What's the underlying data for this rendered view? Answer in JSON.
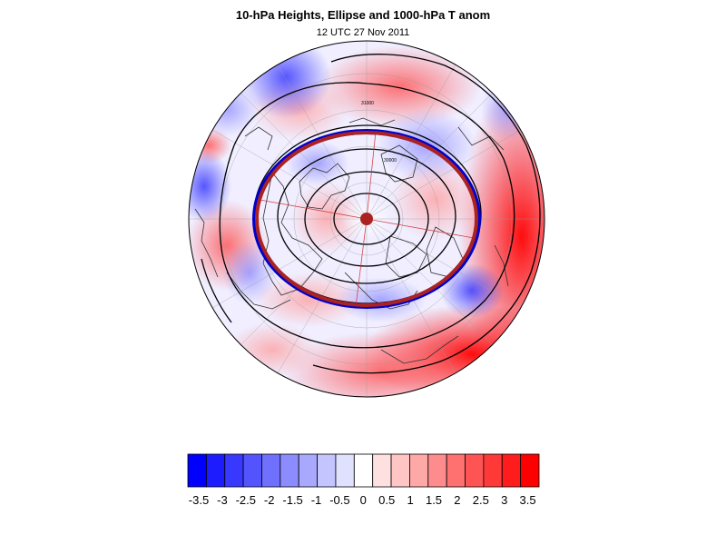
{
  "title": "10-hPa Heights, Ellipse and 1000-hPa T anom",
  "subtitle": "12 UTC 27 Nov 2011",
  "colors": {
    "cold": "#0000ff",
    "warm": "#ff0000",
    "ellipse": "#aa2222",
    "ellipse_edge": "#0000cc",
    "contour": "#000000",
    "coast": "#333333"
  },
  "colorbar": {
    "levels": [
      "-3.5",
      "-3",
      "-2.5",
      "-2",
      "-1.5",
      "-1",
      "-0.5",
      "0",
      "0.5",
      "1",
      "1.5",
      "2",
      "2.5",
      "3",
      "3.5"
    ],
    "colors": [
      "#0000ff",
      "#1c1cff",
      "#3838ff",
      "#5454ff",
      "#7070ff",
      "#8c8cff",
      "#a8a8ff",
      "#c4c4ff",
      "#e0e0ff",
      "#ffffff",
      "#ffe0e0",
      "#ffc4c4",
      "#ffa8a8",
      "#ff8c8c",
      "#ff7070",
      "#ff5454",
      "#ff3838",
      "#ff1c1c",
      "#ff0000"
    ]
  },
  "contour_labels": [
    "31000",
    "30000"
  ]
}
